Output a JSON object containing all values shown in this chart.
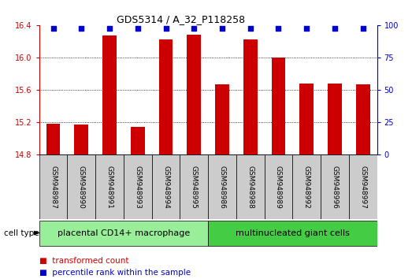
{
  "title": "GDS5314 / A_32_P118258",
  "samples": [
    "GSM948987",
    "GSM948990",
    "GSM948991",
    "GSM948993",
    "GSM948994",
    "GSM948995",
    "GSM948986",
    "GSM948988",
    "GSM948989",
    "GSM948992",
    "GSM948996",
    "GSM948997"
  ],
  "bar_values": [
    15.18,
    15.17,
    16.27,
    15.14,
    16.22,
    16.28,
    15.67,
    16.22,
    16.0,
    15.68,
    15.68,
    15.67
  ],
  "ylim_left": [
    14.8,
    16.4
  ],
  "ylim_right": [
    0,
    100
  ],
  "yticks_left": [
    14.8,
    15.2,
    15.6,
    16.0,
    16.4
  ],
  "yticks_right": [
    0,
    25,
    50,
    75,
    100
  ],
  "groups": [
    {
      "label": "placental CD14+ macrophage",
      "indices": [
        0,
        1,
        2,
        3,
        4,
        5
      ],
      "color": "#99ee99"
    },
    {
      "label": "multinucleated giant cells",
      "indices": [
        6,
        7,
        8,
        9,
        10,
        11
      ],
      "color": "#44cc44"
    }
  ],
  "bar_color": "#cc0000",
  "dot_color": "#0000cc",
  "background_color": "#ffffff",
  "axis_color_left": "#cc0000",
  "axis_color_right": "#0000cc",
  "legend_items": [
    {
      "label": "transformed count",
      "color": "#cc0000"
    },
    {
      "label": "percentile rank within the sample",
      "color": "#0000cc"
    }
  ],
  "xlabel_group": "cell type",
  "bar_width": 0.5,
  "dot_size": 18,
  "grid_linestyle": ":",
  "grid_color": "#000000",
  "sample_box_color": "#cccccc",
  "tick_fontsize": 7,
  "label_fontsize": 6.5,
  "group_fontsize": 8,
  "legend_fontsize": 7.5
}
